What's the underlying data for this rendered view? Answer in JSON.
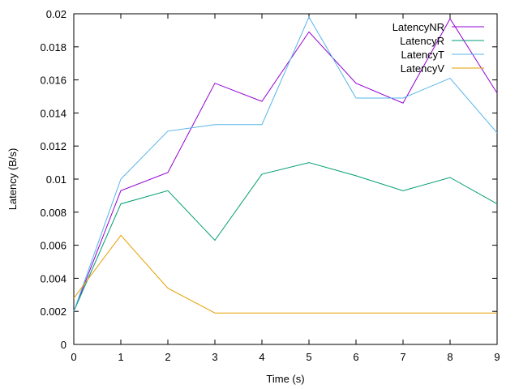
{
  "chart_data": {
    "type": "line",
    "title": "",
    "xlabel": "Time (s)",
    "ylabel": "Latency (B/s)",
    "xlim": [
      0,
      9
    ],
    "ylim": [
      0,
      0.02
    ],
    "x": [
      0,
      1,
      2,
      3,
      4,
      5,
      6,
      7,
      8,
      9
    ],
    "xticks": [
      "0",
      "1",
      "2",
      "3",
      "4",
      "5",
      "6",
      "7",
      "8",
      "9"
    ],
    "yticks": [
      "0",
      "0.002",
      "0.004",
      "0.006",
      "0.008",
      "0.01",
      "0.012",
      "0.014",
      "0.016",
      "0.018",
      "0.02"
    ],
    "grid": false,
    "legend_position": "top-right",
    "series": [
      {
        "name": "LatencyNR",
        "color": "#9400d3",
        "values": [
          0.002,
          0.0093,
          0.0104,
          0.0158,
          0.0147,
          0.0189,
          0.0158,
          0.0146,
          0.0197,
          0.0152
        ]
      },
      {
        "name": "LatencyR",
        "color": "#009e73",
        "values": [
          0.002,
          0.0085,
          0.0093,
          0.0063,
          0.0103,
          0.011,
          0.0102,
          0.0093,
          0.0101,
          0.0085
        ]
      },
      {
        "name": "LatencyT",
        "color": "#56b4e9",
        "values": [
          0.002,
          0.01,
          0.0129,
          0.0133,
          0.0133,
          0.0198,
          0.0149,
          0.0149,
          0.0161,
          0.0128
        ]
      },
      {
        "name": "LatencyV",
        "color": "#e69f00",
        "values": [
          0.0028,
          0.0066,
          0.0034,
          0.0019,
          0.0019,
          0.0019,
          0.0019,
          0.0019,
          0.0019,
          0.0019
        ]
      }
    ]
  }
}
